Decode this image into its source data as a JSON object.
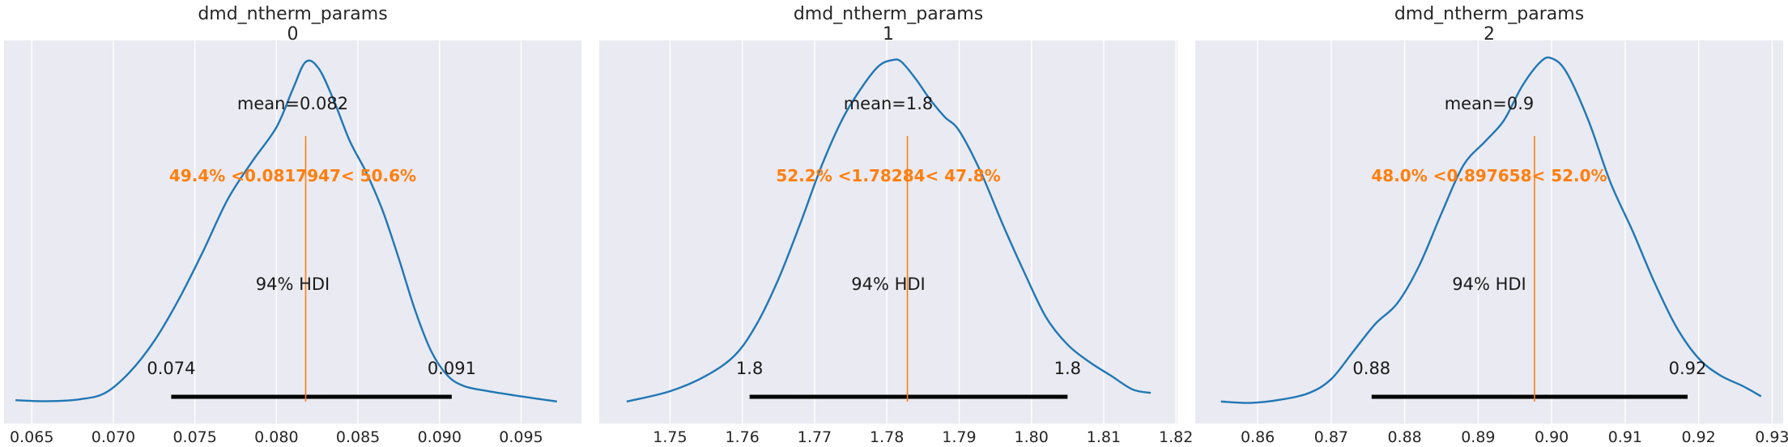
{
  "chart_data": [
    {
      "type": "line",
      "title": "dmd_ntherm_params\n0",
      "xlim": [
        0.0633,
        0.0987
      ],
      "xticks": [
        0.065,
        0.07,
        0.075,
        0.08,
        0.085,
        0.09,
        0.095
      ],
      "xtick_labels": [
        "0.065",
        "0.070",
        "0.075",
        "0.080",
        "0.085",
        "0.090",
        "0.095"
      ],
      "grid": true,
      "kde": {
        "x": [
          0.064,
          0.066,
          0.068,
          0.0695,
          0.071,
          0.0725,
          0.074,
          0.0755,
          0.077,
          0.0785,
          0.08,
          0.081,
          0.0818,
          0.0826,
          0.0835,
          0.0845,
          0.0855,
          0.0865,
          0.0875,
          0.0885,
          0.0895,
          0.0905,
          0.0915,
          0.093,
          0.095,
          0.0972
        ],
        "density": [
          0.009,
          0.006,
          0.012,
          0.03,
          0.09,
          0.18,
          0.3,
          0.44,
          0.59,
          0.7,
          0.8,
          0.91,
          0.99,
          0.97,
          0.88,
          0.76,
          0.67,
          0.56,
          0.42,
          0.27,
          0.15,
          0.08,
          0.05,
          0.035,
          0.02,
          0.005
        ]
      },
      "mean_label": "mean=0.082",
      "reference_value": 0.0817947,
      "reference_label": "49.4% <0.0817947< 50.6%",
      "hdi": [
        0.07355,
        0.09075
      ],
      "hdi_label": "94% HDI",
      "hdi_low_label": "0.074",
      "hdi_high_label": "0.091"
    },
    {
      "type": "line",
      "title": "dmd_ntherm_params\n1",
      "xlim": [
        1.7402,
        1.8202
      ],
      "xticks": [
        1.75,
        1.76,
        1.77,
        1.78,
        1.79,
        1.8,
        1.81,
        1.82
      ],
      "xtick_labels": [
        "1.75",
        "1.76",
        "1.77",
        "1.78",
        "1.79",
        "1.80",
        "1.81",
        "1.82"
      ],
      "grid": true,
      "kde": {
        "x": [
          1.744,
          1.75,
          1.755,
          1.759,
          1.762,
          1.765,
          1.768,
          1.771,
          1.774,
          1.777,
          1.779,
          1.7808,
          1.782,
          1.784,
          1.786,
          1.788,
          1.79,
          1.793,
          1.796,
          1.799,
          1.802,
          1.805,
          1.808,
          1.811,
          1.814,
          1.8165
        ],
        "density": [
          0.005,
          0.035,
          0.08,
          0.14,
          0.23,
          0.36,
          0.52,
          0.69,
          0.83,
          0.93,
          0.98,
          0.995,
          0.99,
          0.94,
          0.88,
          0.83,
          0.79,
          0.67,
          0.52,
          0.38,
          0.25,
          0.17,
          0.12,
          0.08,
          0.04,
          0.03
        ]
      },
      "mean_label": "mean=1.8",
      "reference_value": 1.78284,
      "reference_label": "52.2% <1.78284< 47.8%",
      "hdi": [
        1.761,
        1.805
      ],
      "hdi_label": "94% HDI",
      "hdi_low_label": "1.8",
      "hdi_high_label": "1.8"
    },
    {
      "type": "line",
      "title": "dmd_ntherm_params\n2",
      "xlim": [
        0.8515,
        0.9315
      ],
      "xticks": [
        0.86,
        0.87,
        0.88,
        0.89,
        0.9,
        0.91,
        0.92,
        0.93
      ],
      "xtick_labels": [
        "0.86",
        "0.87",
        "0.88",
        "0.89",
        "0.90",
        "0.91",
        "0.92",
        "0.93"
      ],
      "grid": true,
      "kde": {
        "x": [
          0.855,
          0.859,
          0.863,
          0.867,
          0.87,
          0.873,
          0.876,
          0.879,
          0.882,
          0.885,
          0.888,
          0.891,
          0.8935,
          0.896,
          0.8985,
          0.9,
          0.902,
          0.905,
          0.908,
          0.911,
          0.914,
          0.917,
          0.92,
          0.923,
          0.926,
          0.9285
        ],
        "density": [
          0.005,
          0.001,
          0.01,
          0.03,
          0.07,
          0.15,
          0.23,
          0.29,
          0.4,
          0.55,
          0.69,
          0.76,
          0.82,
          0.92,
          0.99,
          1.0,
          0.96,
          0.82,
          0.64,
          0.5,
          0.35,
          0.22,
          0.13,
          0.08,
          0.05,
          0.02
        ]
      },
      "mean_label": "mean=0.9",
      "reference_value": 0.897658,
      "reference_label": "48.0% <0.897658< 52.0%",
      "hdi": [
        0.8755,
        0.9185
      ],
      "hdi_label": "94% HDI",
      "hdi_low_label": "0.88",
      "hdi_high_label": "0.92"
    }
  ],
  "colors": {
    "background": "#eaeaf2",
    "grid": "#ffffff",
    "kde_line": "#1f77b4",
    "reference": "#ff7f0e",
    "hdi_bar": "#000000",
    "text": "#262626"
  }
}
